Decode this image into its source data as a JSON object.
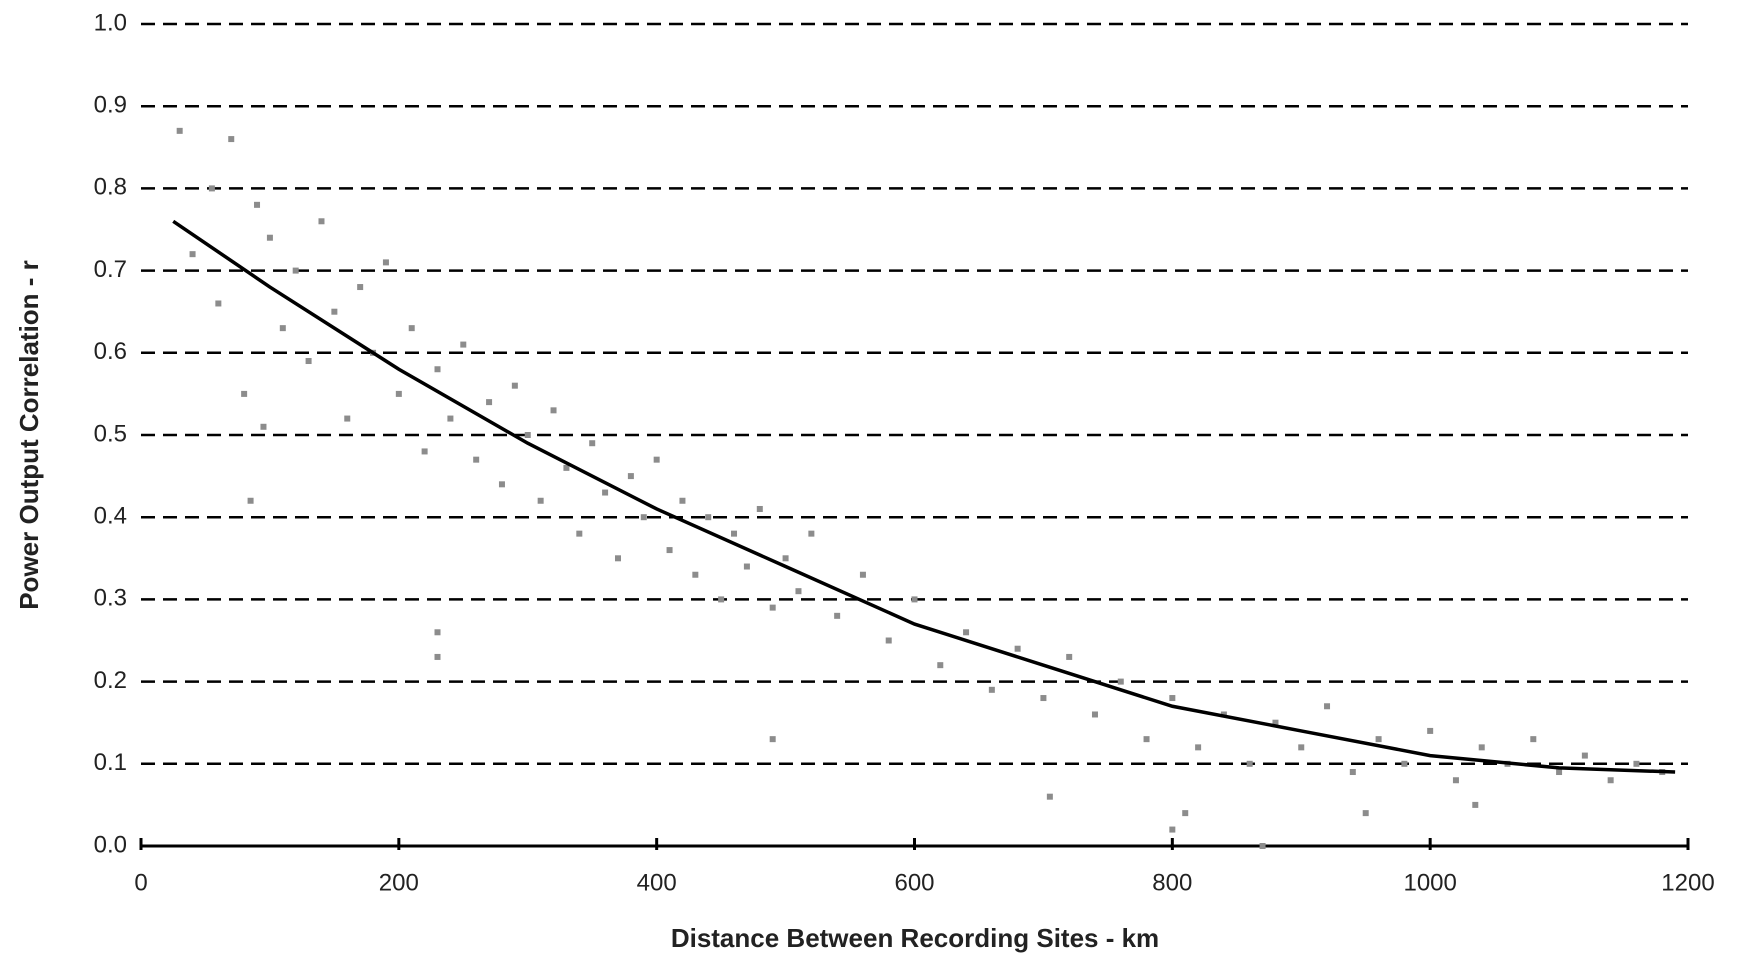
{
  "chart_data": {
    "type": "scatter",
    "x_label": "Distance Between Recording Sites - km",
    "y_label": "Power Output Correlation - r",
    "xlim": [
      0,
      1200
    ],
    "xticks": [
      0,
      200,
      400,
      600,
      800,
      1000,
      1200
    ],
    "ylim": [
      0,
      1
    ],
    "yticks": [
      {
        "value": 0,
        "label": "0.0"
      },
      0.1,
      0.2,
      0.3,
      0.4,
      0.5,
      0.6,
      0.7,
      0.8,
      0.9,
      {
        "value": 1,
        "label": "1.0"
      }
    ],
    "grid": true,
    "series": [
      {
        "type": "scatter",
        "color": "#8c8c8c",
        "x": [
          30,
          40,
          55,
          60,
          70,
          80,
          90,
          95,
          100,
          110,
          120,
          130,
          140,
          150,
          160,
          170,
          180,
          190,
          200,
          210,
          220,
          230,
          240,
          250,
          260,
          270,
          280,
          290,
          300,
          310,
          320,
          330,
          340,
          350,
          360,
          370,
          380,
          390,
          400,
          410,
          420,
          430,
          440,
          450,
          460,
          470,
          480,
          490,
          500,
          510,
          520,
          540,
          560,
          580,
          600,
          620,
          640,
          660,
          680,
          700,
          720,
          740,
          760,
          780,
          800,
          820,
          840,
          860,
          880,
          900,
          920,
          940,
          960,
          980,
          1000,
          1020,
          1040,
          1060,
          1080,
          1100,
          1120,
          1140,
          1160,
          1180,
          85,
          230,
          230,
          490,
          705,
          800,
          810,
          1035,
          950,
          870
        ],
        "y": [
          0.87,
          0.72,
          0.8,
          0.66,
          0.86,
          0.55,
          0.78,
          0.51,
          0.74,
          0.63,
          0.7,
          0.59,
          0.76,
          0.65,
          0.52,
          0.68,
          0.6,
          0.71,
          0.55,
          0.63,
          0.48,
          0.58,
          0.52,
          0.61,
          0.47,
          0.54,
          0.44,
          0.56,
          0.5,
          0.42,
          0.53,
          0.46,
          0.38,
          0.49,
          0.43,
          0.35,
          0.45,
          0.4,
          0.47,
          0.36,
          0.42,
          0.33,
          0.4,
          0.3,
          0.38,
          0.34,
          0.41,
          0.29,
          0.35,
          0.31,
          0.38,
          0.28,
          0.33,
          0.25,
          0.3,
          0.22,
          0.26,
          0.19,
          0.24,
          0.18,
          0.23,
          0.16,
          0.2,
          0.13,
          0.18,
          0.12,
          0.16,
          0.1,
          0.15,
          0.12,
          0.17,
          0.09,
          0.13,
          0.1,
          0.14,
          0.08,
          0.12,
          0.1,
          0.13,
          0.09,
          0.11,
          0.08,
          0.1,
          0.09,
          0.42,
          0.26,
          0.23,
          0.13,
          0.06,
          0.02,
          0.04,
          0.05,
          0.04,
          0
        ]
      },
      {
        "type": "line",
        "color": "#000000",
        "x": [
          25,
          100,
          200,
          300,
          400,
          500,
          600,
          700,
          800,
          900,
          1000,
          1100,
          1190
        ],
        "y": [
          0.76,
          0.68,
          0.58,
          0.49,
          0.41,
          0.34,
          0.27,
          0.22,
          0.17,
          0.14,
          0.11,
          0.095,
          0.09
        ]
      }
    ]
  }
}
